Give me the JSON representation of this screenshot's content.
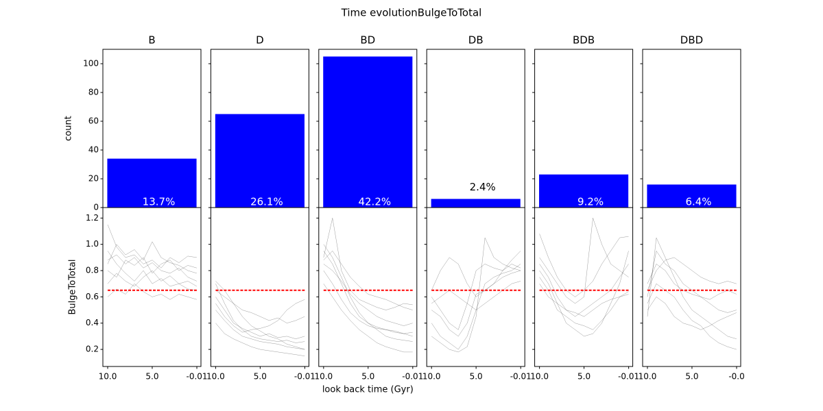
{
  "suptitle": "Time evolutionBulgeToTotal",
  "chart_data": [
    {
      "type": "bar",
      "title": "B",
      "values": [
        34
      ],
      "annotations": [
        "13.7%"
      ],
      "color": "#0000ff",
      "ylim": [
        0,
        110
      ],
      "yticks": [
        0,
        20,
        40,
        60,
        80,
        100
      ],
      "ytick_labels": true,
      "ylabel": "count"
    },
    {
      "type": "bar",
      "title": "D",
      "values": [
        65
      ],
      "annotations": [
        "26.1%"
      ],
      "color": "#0000ff",
      "ylim": [
        0,
        110
      ],
      "yticks": [
        0,
        20,
        40,
        60,
        80,
        100
      ],
      "ytick_labels": false
    },
    {
      "type": "bar",
      "title": "BD",
      "values": [
        105
      ],
      "annotations": [
        "42.2%"
      ],
      "color": "#0000ff",
      "ylim": [
        0,
        110
      ],
      "yticks": [
        0,
        20,
        40,
        60,
        80,
        100
      ],
      "ytick_labels": false
    },
    {
      "type": "bar",
      "title": "DB",
      "values": [
        6
      ],
      "annotations": [
        "2.4%"
      ],
      "color": "#0000ff",
      "ylim": [
        0,
        110
      ],
      "yticks": [
        0,
        20,
        40,
        60,
        80,
        100
      ],
      "ytick_labels": false
    },
    {
      "type": "bar",
      "title": "BDB",
      "values": [
        23
      ],
      "annotations": [
        "9.2%"
      ],
      "color": "#0000ff",
      "ylim": [
        0,
        110
      ],
      "yticks": [
        0,
        20,
        40,
        60,
        80,
        100
      ],
      "ytick_labels": false
    },
    {
      "type": "bar",
      "title": "DBD",
      "values": [
        16
      ],
      "annotations": [
        "6.4%"
      ],
      "color": "#0000ff",
      "ylim": [
        0,
        110
      ],
      "yticks": [
        0,
        20,
        40,
        60,
        80,
        100
      ],
      "ytick_labels": false
    },
    {
      "type": "line",
      "ylabel": "BulgeToTotal",
      "ytick_labels": true,
      "x": [
        10,
        9,
        8,
        7,
        6,
        5,
        4,
        3,
        2,
        1,
        0
      ],
      "xlim": [
        10.54,
        -0.47
      ],
      "xticks": [
        {
          "value": 10,
          "label": "10.0"
        },
        {
          "value": 5,
          "label": "5.0"
        },
        -0.01
      ],
      "ylim": [
        0.07,
        1.28
      ],
      "yticks": [
        0.2,
        0.4,
        0.6,
        0.8,
        {
          "value": 1,
          "label": "1.0"
        },
        1.2
      ],
      "threshold": 0.65,
      "threshold_color": "#ff0000",
      "series": [
        {
          "color": "#000000",
          "values": [
            0.88,
            0.92,
            0.85,
            0.9,
            0.82,
            0.86,
            0.8,
            0.78,
            0.82,
            0.75,
            0.72
          ]
        },
        {
          "color": "#000000",
          "values": [
            0.8,
            0.75,
            0.88,
            0.84,
            0.9,
            0.78,
            0.85,
            0.88,
            0.8,
            0.84,
            0.82
          ]
        },
        {
          "color": "#000000",
          "values": [
            0.95,
            0.85,
            0.78,
            0.72,
            0.8,
            0.7,
            0.74,
            0.68,
            0.7,
            0.66,
            0.65
          ]
        },
        {
          "color": "#000000",
          "values": [
            0.7,
            0.78,
            0.72,
            0.68,
            0.75,
            0.8,
            0.72,
            0.76,
            0.7,
            0.72,
            0.68
          ]
        },
        {
          "color": "#000000",
          "values": [
            1.15,
            0.98,
            0.9,
            0.92,
            0.85,
            0.88,
            0.82,
            0.9,
            0.86,
            0.91,
            0.9
          ]
        },
        {
          "color": "#000000",
          "values": [
            0.6,
            0.66,
            0.62,
            0.7,
            0.64,
            0.6,
            0.62,
            0.58,
            0.62,
            0.6,
            0.58
          ]
        },
        {
          "color": "#000000",
          "values": [
            0.85,
            1.0,
            0.92,
            0.96,
            0.88,
            1.02,
            0.9,
            0.86,
            0.84,
            0.8,
            0.78
          ]
        }
      ]
    },
    {
      "type": "line",
      "ytick_labels": false,
      "x": [
        10,
        9,
        8,
        7,
        6,
        5,
        4,
        3,
        2,
        1,
        0
      ],
      "xlim": [
        10.54,
        -0.47
      ],
      "xticks": [
        {
          "value": 10,
          "label": "10.0"
        },
        {
          "value": 5,
          "label": "5.0"
        },
        -0.01
      ],
      "ylim": [
        0.07,
        1.28
      ],
      "yticks": [
        0.2,
        0.4,
        0.6,
        0.8,
        1,
        1.2
      ],
      "threshold": 0.65,
      "threshold_color": "#ff0000",
      "series": [
        {
          "color": "#000000",
          "values": [
            0.7,
            0.55,
            0.42,
            0.35,
            0.3,
            0.28,
            0.27,
            0.26,
            0.27,
            0.25,
            0.26
          ]
        },
        {
          "color": "#000000",
          "values": [
            0.6,
            0.5,
            0.4,
            0.36,
            0.33,
            0.3,
            0.32,
            0.29,
            0.3,
            0.28,
            0.3
          ]
        },
        {
          "color": "#000000",
          "values": [
            0.72,
            0.65,
            0.55,
            0.45,
            0.38,
            0.34,
            0.3,
            0.28,
            0.24,
            0.22,
            0.2
          ]
        },
        {
          "color": "#000000",
          "values": [
            0.5,
            0.42,
            0.35,
            0.3,
            0.28,
            0.26,
            0.25,
            0.24,
            0.22,
            0.21,
            0.2
          ]
        },
        {
          "color": "#000000",
          "values": [
            0.65,
            0.6,
            0.55,
            0.5,
            0.48,
            0.45,
            0.42,
            0.44,
            0.4,
            0.42,
            0.45
          ]
        },
        {
          "color": "#000000",
          "values": [
            0.4,
            0.32,
            0.28,
            0.25,
            0.22,
            0.2,
            0.19,
            0.18,
            0.17,
            0.16,
            0.15
          ]
        },
        {
          "color": "#000000",
          "values": [
            0.55,
            0.45,
            0.38,
            0.33,
            0.35,
            0.36,
            0.38,
            0.42,
            0.5,
            0.55,
            0.58
          ]
        }
      ]
    },
    {
      "type": "line",
      "ytick_labels": false,
      "xlabel": "look back time (Gyr)",
      "x": [
        10,
        9,
        8,
        7,
        6,
        5,
        4,
        3,
        2,
        1,
        0
      ],
      "xlim": [
        10.54,
        -0.47
      ],
      "xticks": [
        {
          "value": 10,
          "label": "10.0"
        },
        {
          "value": 5,
          "label": "5.0"
        },
        -0.01
      ],
      "ylim": [
        0.07,
        1.28
      ],
      "yticks": [
        0.2,
        0.4,
        0.6,
        0.8,
        1,
        1.2
      ],
      "threshold": 0.65,
      "threshold_color": "#ff0000",
      "series": [
        {
          "color": "#000000",
          "values": [
            0.95,
            0.85,
            0.7,
            0.55,
            0.45,
            0.4,
            0.37,
            0.35,
            0.33,
            0.32,
            0.33
          ]
        },
        {
          "color": "#000000",
          "values": [
            0.85,
            0.8,
            0.72,
            0.62,
            0.55,
            0.5,
            0.45,
            0.42,
            0.4,
            0.38,
            0.4
          ]
        },
        {
          "color": "#000000",
          "values": [
            1.0,
            0.9,
            0.75,
            0.6,
            0.48,
            0.4,
            0.35,
            0.3,
            0.28,
            0.27,
            0.26
          ]
        },
        {
          "color": "#000000",
          "values": [
            0.8,
            0.7,
            0.58,
            0.48,
            0.42,
            0.38,
            0.36,
            0.35,
            0.34,
            0.32,
            0.3
          ]
        },
        {
          "color": "#000000",
          "values": [
            0.9,
            1.2,
            0.8,
            0.65,
            0.58,
            0.55,
            0.52,
            0.5,
            0.52,
            0.55,
            0.54
          ]
        },
        {
          "color": "#000000",
          "values": [
            0.7,
            0.6,
            0.5,
            0.42,
            0.35,
            0.3,
            0.25,
            0.22,
            0.2,
            0.18,
            0.18
          ]
        },
        {
          "color": "#000000",
          "values": [
            0.88,
            0.95,
            0.85,
            0.75,
            0.68,
            0.62,
            0.6,
            0.58,
            0.55,
            0.52,
            0.5
          ]
        }
      ]
    },
    {
      "type": "line",
      "ytick_labels": false,
      "x": [
        10,
        9,
        8,
        7,
        6,
        5,
        4,
        3,
        2,
        1,
        0
      ],
      "xlim": [
        10.54,
        -0.47
      ],
      "xticks": [
        {
          "value": 10,
          "label": "10.0"
        },
        {
          "value": 5,
          "label": "5.0"
        },
        -0.01
      ],
      "ylim": [
        0.07,
        1.28
      ],
      "yticks": [
        0.2,
        0.4,
        0.6,
        0.8,
        1,
        1.2
      ],
      "threshold": 0.65,
      "threshold_color": "#ff0000",
      "series": [
        {
          "color": "#000000",
          "values": [
            0.6,
            0.5,
            0.4,
            0.35,
            0.55,
            0.8,
            0.85,
            0.82,
            0.8,
            0.85,
            0.82
          ]
        },
        {
          "color": "#000000",
          "values": [
            0.4,
            0.3,
            0.25,
            0.2,
            0.3,
            0.5,
            0.7,
            0.75,
            0.78,
            0.8,
            0.85
          ]
        },
        {
          "color": "#000000",
          "values": [
            0.65,
            0.8,
            0.9,
            0.85,
            0.7,
            0.6,
            0.65,
            0.7,
            0.8,
            0.88,
            0.95
          ]
        },
        {
          "color": "#000000",
          "values": [
            0.3,
            0.25,
            0.2,
            0.18,
            0.22,
            0.45,
            1.05,
            0.9,
            0.85,
            0.82,
            0.8
          ]
        },
        {
          "color": "#000000",
          "values": [
            0.55,
            0.6,
            0.65,
            0.6,
            0.55,
            0.5,
            0.55,
            0.6,
            0.65,
            0.7,
            0.72
          ]
        },
        {
          "color": "#000000",
          "values": [
            0.5,
            0.45,
            0.35,
            0.3,
            0.4,
            0.62,
            0.65,
            0.7,
            0.75,
            0.78,
            0.8
          ]
        }
      ]
    },
    {
      "type": "line",
      "ytick_labels": false,
      "x": [
        10,
        9,
        8,
        7,
        6,
        5,
        4,
        3,
        2,
        1,
        0
      ],
      "xlim": [
        10.54,
        -0.47
      ],
      "xticks": [
        {
          "value": 10,
          "label": "10.0"
        },
        {
          "value": 5,
          "label": "5.0"
        },
        -0.01
      ],
      "ylim": [
        0.07,
        1.28
      ],
      "yticks": [
        0.2,
        0.4,
        0.6,
        0.8,
        1,
        1.2
      ],
      "threshold": 0.65,
      "threshold_color": "#ff0000",
      "series": [
        {
          "color": "#000000",
          "values": [
            0.85,
            0.75,
            0.6,
            0.5,
            0.45,
            0.5,
            0.55,
            0.6,
            0.65,
            0.75,
            0.85
          ]
        },
        {
          "color": "#000000",
          "values": [
            0.8,
            0.7,
            0.55,
            0.4,
            0.35,
            0.3,
            0.32,
            0.4,
            0.55,
            0.7,
            0.95
          ]
        },
        {
          "color": "#000000",
          "values": [
            0.9,
            0.8,
            0.7,
            0.6,
            0.55,
            0.6,
            1.2,
            1.0,
            0.85,
            0.8,
            0.75
          ]
        },
        {
          "color": "#000000",
          "values": [
            0.75,
            0.65,
            0.5,
            0.45,
            0.4,
            0.38,
            0.35,
            0.42,
            0.5,
            0.6,
            0.62
          ]
        },
        {
          "color": "#000000",
          "values": [
            1.08,
            0.9,
            0.75,
            0.65,
            0.6,
            0.65,
            0.72,
            0.85,
            0.95,
            1.05,
            1.06
          ]
        },
        {
          "color": "#000000",
          "values": [
            0.7,
            0.6,
            0.55,
            0.5,
            0.48,
            0.45,
            0.5,
            0.55,
            0.58,
            0.6,
            0.64
          ]
        }
      ]
    },
    {
      "type": "line",
      "ytick_labels": false,
      "x": [
        10,
        9,
        8,
        7,
        6,
        5,
        4,
        3,
        2,
        1,
        0
      ],
      "xlim": [
        10.54,
        -0.47
      ],
      "xticks": [
        {
          "value": 10,
          "label": "10.0"
        },
        {
          "value": 5,
          "label": "5.0"
        },
        {
          "value": -0.01,
          "label": "-0.0"
        }
      ],
      "ylim": [
        0.07,
        1.28
      ],
      "yticks": [
        0.2,
        0.4,
        0.6,
        0.8,
        1,
        1.2
      ],
      "threshold": 0.65,
      "threshold_color": "#ff0000",
      "series": [
        {
          "color": "#000000",
          "values": [
            0.6,
            0.95,
            0.85,
            0.8,
            0.7,
            0.65,
            0.6,
            0.55,
            0.5,
            0.48,
            0.5
          ]
        },
        {
          "color": "#000000",
          "values": [
            0.45,
            1.05,
            0.9,
            0.75,
            0.6,
            0.5,
            0.45,
            0.4,
            0.35,
            0.3,
            0.28
          ]
        },
        {
          "color": "#000000",
          "values": [
            0.65,
            0.8,
            0.88,
            0.9,
            0.85,
            0.8,
            0.75,
            0.72,
            0.7,
            0.72,
            0.7
          ]
        },
        {
          "color": "#000000",
          "values": [
            0.55,
            0.7,
            0.65,
            0.6,
            0.5,
            0.42,
            0.38,
            0.3,
            0.25,
            0.22,
            0.2
          ]
        },
        {
          "color": "#000000",
          "values": [
            0.7,
            0.85,
            0.8,
            0.7,
            0.65,
            0.62,
            0.6,
            0.58,
            0.62,
            0.65,
            0.62
          ]
        },
        {
          "color": "#000000",
          "values": [
            0.5,
            0.6,
            0.55,
            0.45,
            0.4,
            0.38,
            0.35,
            0.38,
            0.42,
            0.45,
            0.48
          ]
        }
      ]
    }
  ]
}
